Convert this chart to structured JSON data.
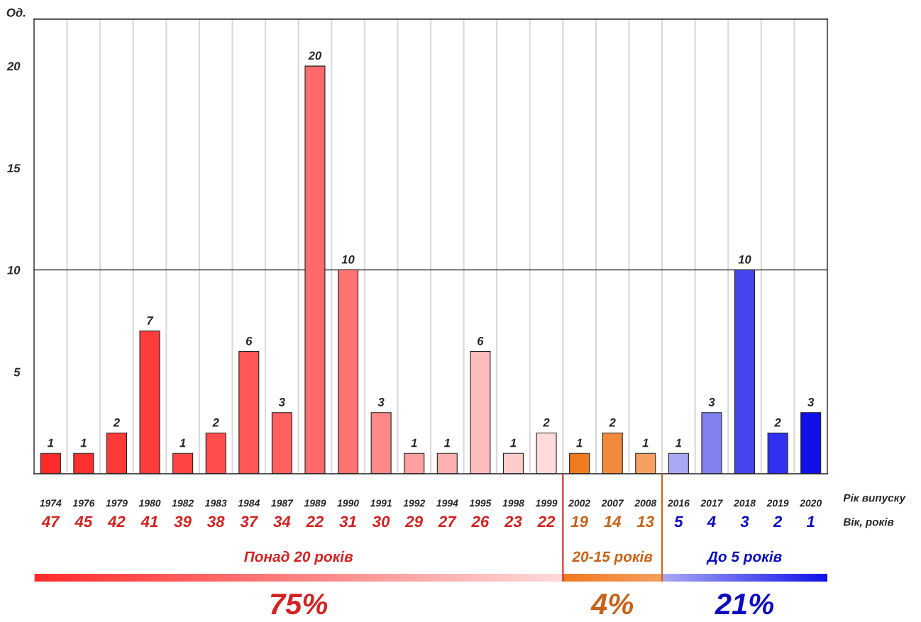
{
  "chart_data": {
    "type": "bar",
    "ylabel": "Од.",
    "xlabel": "Рік випуску",
    "categories": [
      "1974",
      "1976",
      "1979",
      "1980",
      "1982",
      "1983",
      "1984",
      "1987",
      "1989",
      "1990",
      "1991",
      "1992",
      "1994",
      "1995",
      "1998",
      "1999",
      "2002",
      "2007",
      "2008",
      "2016",
      "2017",
      "2018",
      "2019",
      "2020"
    ],
    "values": [
      1,
      1,
      2,
      7,
      1,
      2,
      6,
      3,
      20,
      10,
      3,
      1,
      1,
      6,
      1,
      2,
      1,
      2,
      1,
      1,
      3,
      10,
      2,
      3
    ],
    "colors": [
      "#ff2b2b",
      "#ff3030",
      "#ff3838",
      "#ff3d3d",
      "#ff4545",
      "#ff4d4d",
      "#ff5656",
      "#ff6060",
      "#ff6a6a",
      "#ff7373",
      "#ff8888",
      "#ffa0a0",
      "#ffb0b0",
      "#ffbcbc",
      "#ffcccc",
      "#ffdada",
      "#f07a1e",
      "#f28a3c",
      "#f5a060",
      "#a8a8f5",
      "#8080f0",
      "#4545ee",
      "#3030ee",
      "#1010e8"
    ],
    "ylim": [
      0,
      22.3
    ],
    "yticks": [
      5,
      10,
      15,
      20
    ],
    "grid": "x",
    "data_labels": true,
    "ref_lines": [
      {
        "axis": "y",
        "value": 10,
        "color": "#404040"
      }
    ],
    "annotations": [
      "Вік, років",
      "47",
      "45",
      "42",
      "41",
      "39",
      "38",
      "37",
      "34",
      "22",
      "31",
      "30",
      "29",
      "27",
      "26",
      "23",
      "22",
      "19",
      "14",
      "13",
      "5",
      "4",
      "3",
      "2",
      "1",
      "Понад 20 років",
      "20-15 років",
      "До 5 років",
      "75%",
      "4%",
      "21%"
    ]
  }
}
